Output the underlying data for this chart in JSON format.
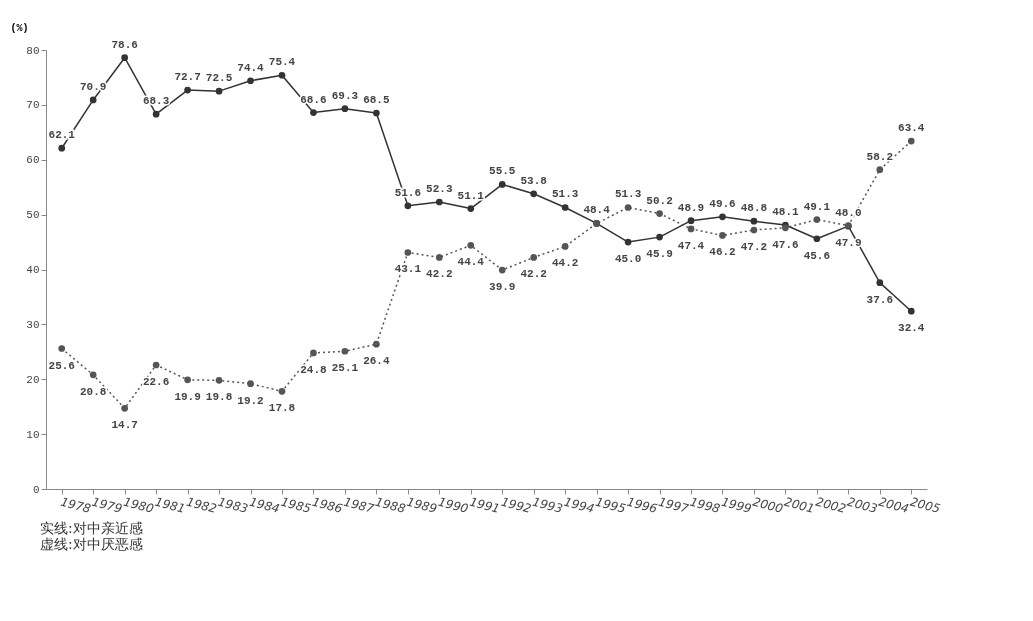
{
  "chart_data": {
    "type": "line",
    "ylabel": "(%)",
    "categories": [
      "1978",
      "1979",
      "1980",
      "1981",
      "1982",
      "1983",
      "1984",
      "1985",
      "1986",
      "1987",
      "1988",
      "1989",
      "1990",
      "1991",
      "1992",
      "1993",
      "1994",
      "1995",
      "1996",
      "1997",
      "1998",
      "1999",
      "2000",
      "2001",
      "2002",
      "2003",
      "2004",
      "2005"
    ],
    "series": [
      {
        "color": "#333333",
        "line_style": "solid",
        "values": [
          62.1,
          70.9,
          78.6,
          68.3,
          72.7,
          72.5,
          74.4,
          75.4,
          68.6,
          69.3,
          68.5,
          51.6,
          52.3,
          51.1,
          55.5,
          53.8,
          51.3,
          48.4,
          45.0,
          45.9,
          48.9,
          49.6,
          48.8,
          48.1,
          45.6,
          47.9,
          37.6,
          32.4
        ],
        "value_labels": [
          "62.1",
          "70.9",
          "78.6",
          "68.3",
          "72.7",
          "72.5",
          "74.4",
          "75.4",
          "68.6",
          "69.3",
          "68.5",
          "51.6",
          "52.3",
          "51.1",
          "55.5",
          "53.8",
          "51.3",
          "48.4",
          "45.0",
          "45.9",
          "48.9",
          "49.6",
          "48.8",
          "48.1",
          "45.6",
          "47.9",
          "37.6",
          "32.4"
        ]
      },
      {
        "color": "#555555",
        "line_style": "dotted",
        "values": [
          25.6,
          20.8,
          14.7,
          22.6,
          19.9,
          19.8,
          19.2,
          17.8,
          24.8,
          25.1,
          26.4,
          43.1,
          42.2,
          44.4,
          39.9,
          42.2,
          44.2,
          48.4,
          51.3,
          50.2,
          47.4,
          46.2,
          47.2,
          47.6,
          49.1,
          48.0,
          58.2,
          63.4
        ],
        "value_labels": [
          "25.6",
          "20.8",
          "14.7",
          "22.6",
          "19.9",
          "19.8",
          "19.2",
          "17.8",
          "24.8",
          "25.1",
          "26.4",
          "43.1",
          "42.2",
          "44.4",
          "39.9",
          "42.2",
          "44.2",
          null,
          "51.3",
          "50.2",
          "47.4",
          "46.2",
          "47.2",
          "47.6",
          "49.1",
          "48.0",
          "58.2",
          "63.4"
        ]
      }
    ],
    "data_labels": true,
    "ylim": [
      0,
      80
    ],
    "yticks": [
      0,
      10,
      20,
      30,
      40,
      50,
      60,
      70,
      80
    ],
    "grid": false,
    "marker": "circle",
    "annotations": [
      "实线:对中亲近感",
      "虚线:对中厌恶感"
    ]
  }
}
